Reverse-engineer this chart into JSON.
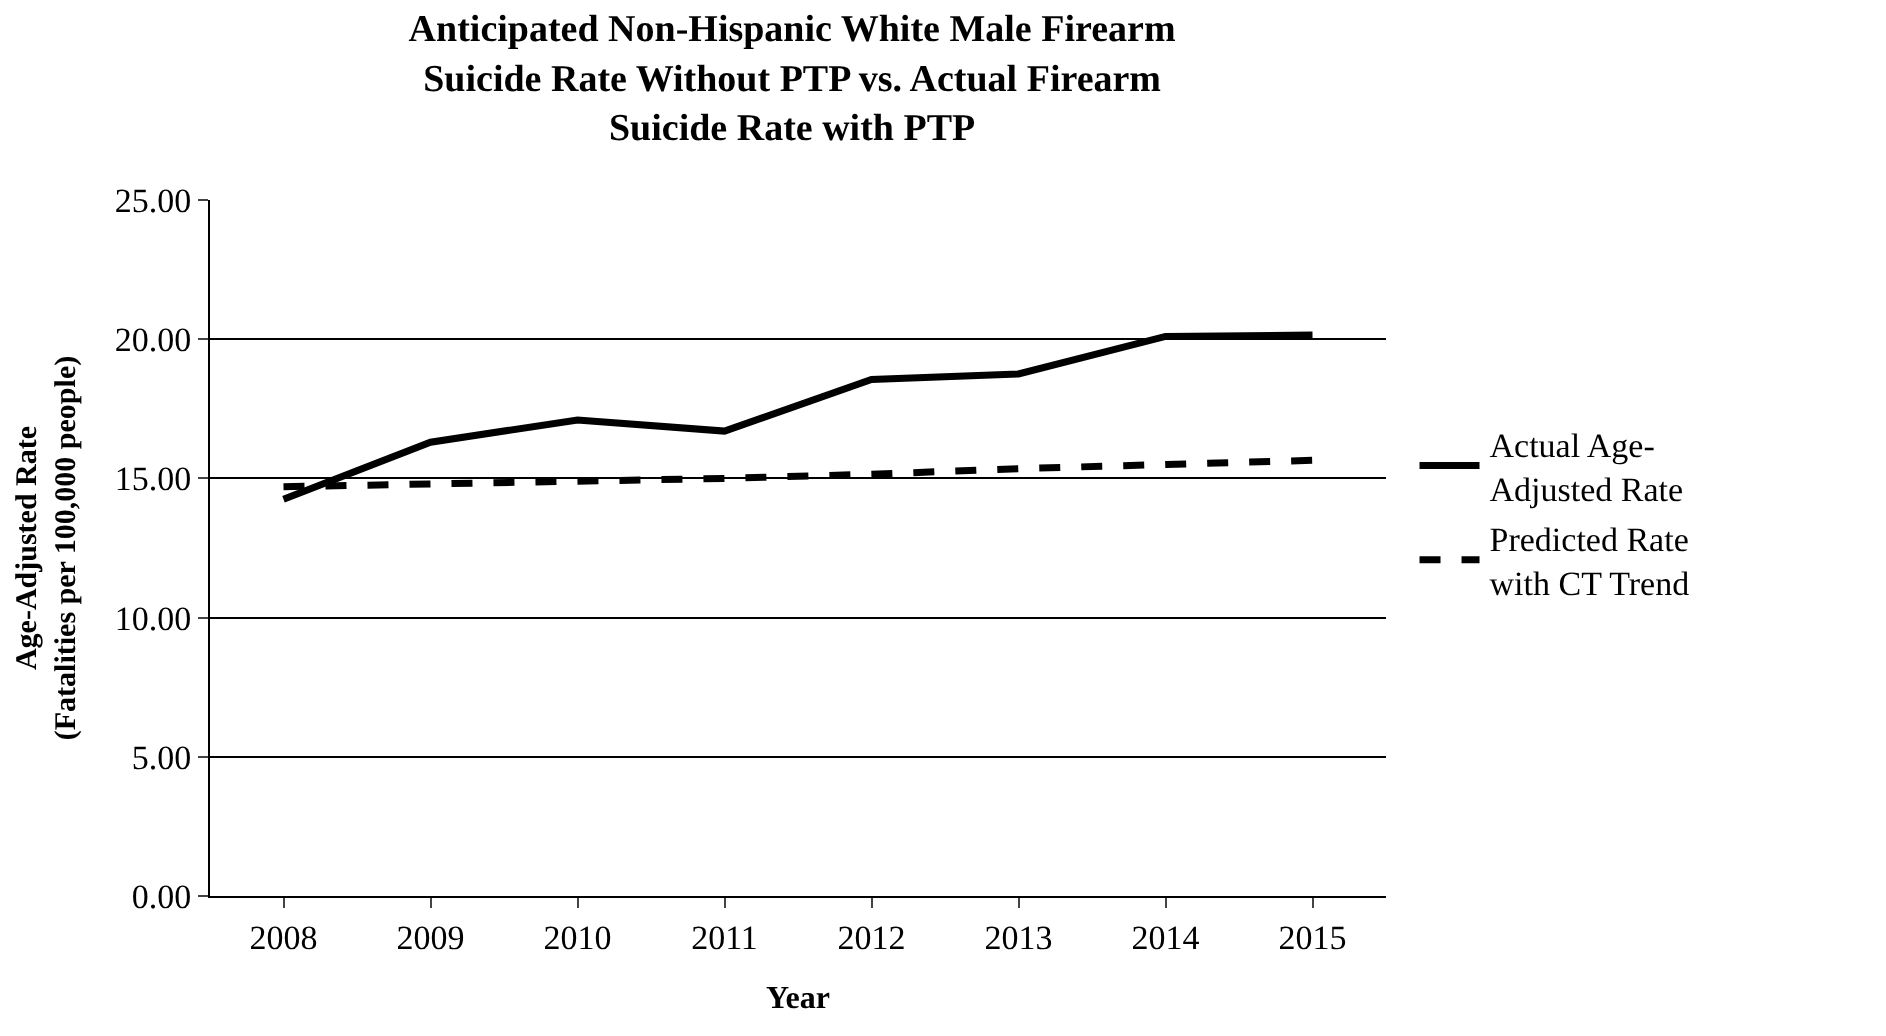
{
  "chart_data": {
    "type": "line",
    "title": "Anticipated Non-Hispanic White Male Firearm Suicide Rate Without PTP vs. Actual Firearm Suicide Rate with PTP",
    "xlabel": "Year",
    "ylabel": "Age-Adjusted Rate (Fatalities per 100,000 people)",
    "categories": [
      "2008",
      "2009",
      "2010",
      "2011",
      "2012",
      "2013",
      "2014",
      "2015"
    ],
    "series": [
      {
        "name": "Actual Age-Adjusted Rate",
        "color": "#000000",
        "line_style": "solid",
        "values": [
          14.25,
          16.3,
          17.1,
          16.7,
          18.55,
          18.75,
          20.1,
          20.15
        ]
      },
      {
        "name": "Predicted Rate with CT Trend",
        "color": "#000000",
        "line_style": "dashed",
        "values": [
          14.7,
          14.8,
          14.9,
          15.0,
          15.15,
          15.35,
          15.5,
          15.65
        ]
      }
    ],
    "ylim": [
      0,
      25
    ],
    "yticks": [
      {
        "value": 0,
        "label": "0.00"
      },
      {
        "value": 5,
        "label": "5.00"
      },
      {
        "value": 10,
        "label": "10.00"
      },
      {
        "value": 15,
        "label": "15.00"
      },
      {
        "value": 20,
        "label": "20.00"
      },
      {
        "value": 25,
        "label": "25.00"
      }
    ],
    "grid": "y",
    "legend": "right",
    "marker": "none"
  }
}
